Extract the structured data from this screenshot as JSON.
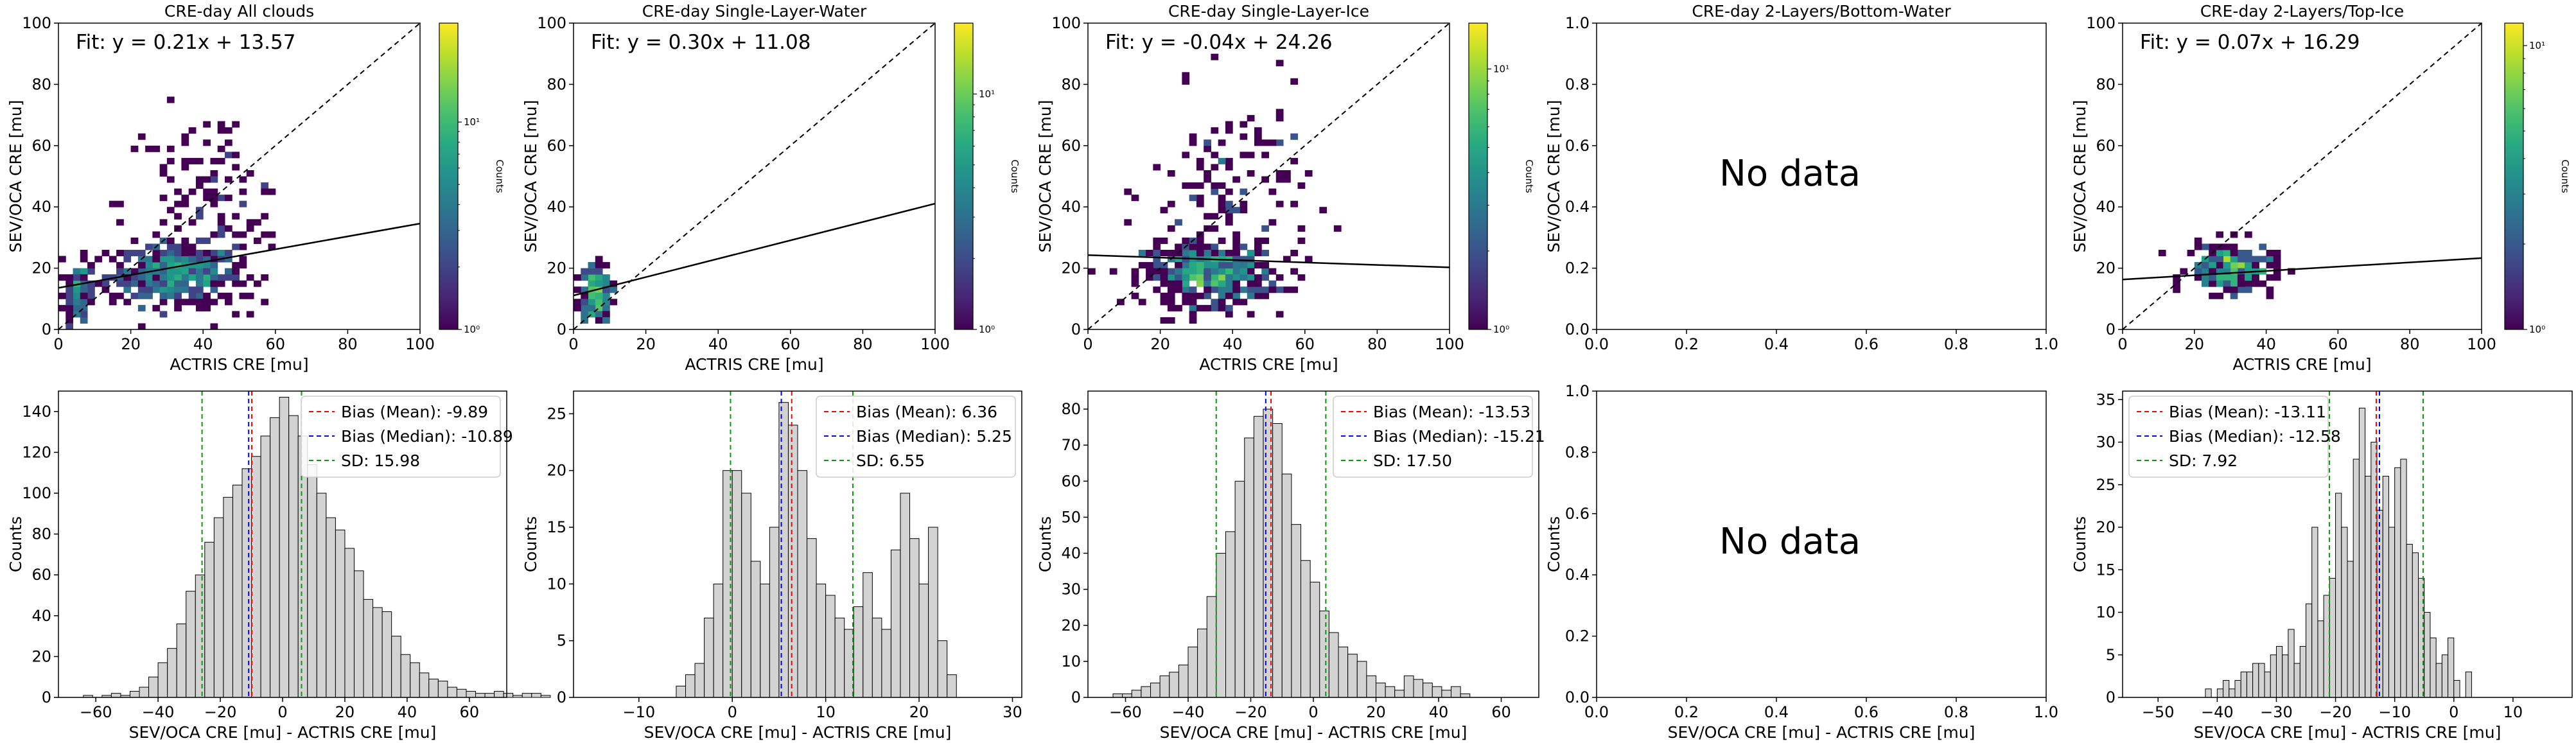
{
  "figure": {
    "no_data_text": "No data"
  },
  "chart_data": [
    {
      "type": "heatmap",
      "title": "CRE-day All clouds",
      "xlabel": "ACTRIS CRE [mu]",
      "ylabel": "SEV/OCA CRE [mu]",
      "xlim": [
        0,
        100
      ],
      "ylim": [
        0,
        100
      ],
      "xticks": [
        "0",
        "20",
        "40",
        "60",
        "80",
        "100"
      ],
      "yticks": [
        "0",
        "20",
        "40",
        "60",
        "80",
        "100"
      ],
      "fit_label": "Fit: y = 0.21x + 13.57",
      "fit": {
        "slope": 0.21,
        "intercept": 13.57
      },
      "reference_line": "1:1",
      "colorbar": {
        "label": "Counts",
        "scale": "log",
        "ticks": [
          "10⁰",
          "10¹"
        ],
        "range": [
          1,
          30
        ]
      },
      "density": {
        "clusters": [
          {
            "x": 32,
            "y": 18,
            "sx": 9,
            "sy": 5,
            "n": 420
          },
          {
            "x": 6,
            "y": 12,
            "sx": 2,
            "sy": 5,
            "n": 90
          },
          {
            "x": 42,
            "y": 40,
            "sx": 12,
            "sy": 16,
            "n": 120
          }
        ],
        "xmax": 60,
        "ymax": 90
      }
    },
    {
      "type": "heatmap",
      "title": "CRE-day Single-Layer-Water",
      "xlabel": "ACTRIS CRE [mu]",
      "ylabel": "SEV/OCA CRE [mu]",
      "xlim": [
        0,
        100
      ],
      "ylim": [
        0,
        100
      ],
      "xticks": [
        "0",
        "20",
        "40",
        "60",
        "80",
        "100"
      ],
      "yticks": [
        "0",
        "20",
        "40",
        "60",
        "80",
        "100"
      ],
      "fit_label": "Fit: y = 0.30x + 11.08",
      "fit": {
        "slope": 0.3,
        "intercept": 11.08
      },
      "reference_line": "1:1",
      "colorbar": {
        "label": "Counts",
        "scale": "log",
        "ticks": [
          "10⁰",
          "10¹"
        ],
        "range": [
          1,
          20
        ]
      },
      "density": {
        "clusters": [
          {
            "x": 6,
            "y": 12,
            "sx": 2,
            "sy": 5,
            "n": 160
          }
        ],
        "xmax": 14,
        "ymax": 24
      }
    },
    {
      "type": "heatmap",
      "title": "CRE-day Single-Layer-Ice",
      "xlabel": "ACTRIS CRE [mu]",
      "ylabel": "SEV/OCA CRE [mu]",
      "xlim": [
        0,
        100
      ],
      "ylim": [
        0,
        100
      ],
      "xticks": [
        "0",
        "20",
        "40",
        "60",
        "80",
        "100"
      ],
      "yticks": [
        "0",
        "20",
        "40",
        "60",
        "80",
        "100"
      ],
      "fit_label": "Fit: y = -0.04x + 24.26",
      "fit": {
        "slope": -0.04,
        "intercept": 24.26
      },
      "reference_line": "1:1",
      "colorbar": {
        "label": "Counts",
        "scale": "log",
        "ticks": [
          "10⁰",
          "10¹"
        ],
        "range": [
          1,
          15
        ]
      },
      "density": {
        "clusters": [
          {
            "x": 34,
            "y": 18,
            "sx": 9,
            "sy": 5,
            "n": 380
          },
          {
            "x": 40,
            "y": 45,
            "sx": 11,
            "sy": 16,
            "n": 120
          }
        ],
        "xmax": 78,
        "ymax": 92
      }
    },
    {
      "type": "heatmap",
      "title": "CRE-day 2-Layers/Bottom-Water",
      "xlabel": "",
      "ylabel": "SEV/OCA CRE [mu]",
      "xlim": [
        0,
        1
      ],
      "ylim": [
        0,
        1
      ],
      "xticks": [
        "0.0",
        "0.2",
        "0.4",
        "0.6",
        "0.8",
        "1.0"
      ],
      "yticks": [
        "0.0",
        "0.2",
        "0.4",
        "0.6",
        "0.8",
        "1.0"
      ],
      "empty": true
    },
    {
      "type": "heatmap",
      "title": "CRE-day 2-Layers/Top-Ice",
      "xlabel": "ACTRIS CRE [mu]",
      "ylabel": "SEV/OCA CRE [mu]",
      "xlim": [
        0,
        100
      ],
      "ylim": [
        0,
        100
      ],
      "xticks": [
        "0",
        "20",
        "40",
        "60",
        "80",
        "100"
      ],
      "yticks": [
        "0",
        "20",
        "40",
        "60",
        "80",
        "100"
      ],
      "fit_label": "Fit: y = 0.07x + 16.29",
      "fit": {
        "slope": 0.07,
        "intercept": 16.29
      },
      "reference_line": "1:1",
      "colorbar": {
        "label": "Counts",
        "scale": "log",
        "ticks": [
          "10⁰",
          "10¹"
        ],
        "range": [
          1,
          12
        ]
      },
      "density": {
        "clusters": [
          {
            "x": 30,
            "y": 20,
            "sx": 6,
            "sy": 4,
            "n": 200
          }
        ],
        "xmax": 52,
        "ymax": 32
      }
    },
    {
      "type": "bar",
      "subtype": "histogram",
      "xlabel": "SEV/OCA CRE [mu] - ACTRIS CRE [mu]",
      "ylabel": "Counts",
      "xlim": [
        -72,
        72
      ],
      "ylim": [
        0,
        150
      ],
      "xticks": [
        -60,
        -40,
        -20,
        0,
        20,
        40,
        60
      ],
      "yticks": [
        0,
        20,
        40,
        60,
        80,
        100,
        120,
        140
      ],
      "bin_start": -64,
      "bin_width": 3,
      "values": [
        1,
        0,
        1,
        2,
        1,
        3,
        5,
        10,
        17,
        24,
        36,
        52,
        60,
        76,
        88,
        98,
        104,
        112,
        118,
        128,
        137,
        147,
        138,
        128,
        114,
        100,
        88,
        82,
        73,
        62,
        48,
        44,
        42,
        30,
        21,
        17,
        12,
        9,
        8,
        5,
        4,
        3,
        2,
        2,
        3,
        2,
        1,
        2,
        2,
        1
      ],
      "lines": [
        {
          "label": "Bias (Mean): -9.89",
          "x": -9.89,
          "color": "#ff0000"
        },
        {
          "label": "Bias (Median): -10.89",
          "x": -10.89,
          "color": "#0000ff"
        },
        {
          "label": "SD: 15.98",
          "x": -25.87,
          "x2": 6.09,
          "color": "#00a000"
        }
      ],
      "legend_position": "top-right"
    },
    {
      "type": "bar",
      "subtype": "histogram",
      "xlabel": "SEV/OCA CRE [mu] - ACTRIS CRE [mu]",
      "ylabel": "Counts",
      "xlim": [
        -17,
        31
      ],
      "ylim": [
        0,
        27
      ],
      "xticks": [
        -10,
        0,
        10,
        20,
        30
      ],
      "yticks": [
        0,
        5,
        10,
        15,
        20,
        25
      ],
      "bin_start": -6,
      "bin_width": 1,
      "values": [
        1,
        2,
        3,
        7,
        10,
        20,
        20,
        18,
        12,
        10,
        15,
        26,
        24,
        20,
        14,
        10,
        9,
        7,
        6,
        8,
        11,
        7,
        6,
        13,
        18,
        14,
        10,
        15,
        5,
        2
      ],
      "lines": [
        {
          "label": "Bias (Mean): 6.36",
          "x": 6.36,
          "color": "#ff0000"
        },
        {
          "label": "Bias (Median): 5.25",
          "x": 5.25,
          "color": "#0000ff"
        },
        {
          "label": "SD: 6.55",
          "x": -0.19,
          "x2": 12.91,
          "color": "#00a000"
        }
      ],
      "legend_position": "top-right"
    },
    {
      "type": "bar",
      "subtype": "histogram",
      "xlabel": "SEV/OCA CRE [mu] - ACTRIS CRE [mu]",
      "ylabel": "Counts",
      "xlim": [
        -72,
        72
      ],
      "ylim": [
        0,
        85
      ],
      "xticks": [
        -60,
        -40,
        -20,
        0,
        20,
        40,
        60
      ],
      "yticks": [
        0,
        10,
        20,
        30,
        40,
        50,
        60,
        70,
        80
      ],
      "bin_start": -64,
      "bin_width": 3,
      "values": [
        1,
        1,
        2,
        3,
        4,
        6,
        7,
        9,
        14,
        19,
        28,
        40,
        46,
        60,
        72,
        78,
        80,
        76,
        62,
        48,
        38,
        32,
        24,
        18,
        14,
        12,
        10,
        6,
        4,
        3,
        2,
        6,
        5,
        4,
        3,
        2,
        3,
        1
      ],
      "lines": [
        {
          "label": "Bias (Mean): -13.53",
          "x": -13.53,
          "color": "#ff0000"
        },
        {
          "label": "Bias (Median): -15.21",
          "x": -15.21,
          "color": "#0000ff"
        },
        {
          "label": "SD: 17.50",
          "x": -31.03,
          "x2": 3.97,
          "color": "#00a000"
        }
      ],
      "legend_position": "top-right"
    },
    {
      "type": "bar",
      "subtype": "histogram",
      "xlabel": "SEV/OCA CRE [mu] - ACTRIS CRE [mu]",
      "ylabel": "Counts",
      "xlim": [
        0,
        1
      ],
      "ylim": [
        0,
        1
      ],
      "xticks": [
        "0.0",
        "0.2",
        "0.4",
        "0.6",
        "0.8",
        "1.0"
      ],
      "yticks": [
        "0.0",
        "0.2",
        "0.4",
        "0.6",
        "0.8",
        "1.0"
      ],
      "empty": true
    },
    {
      "type": "bar",
      "subtype": "histogram",
      "xlabel": "SEV/OCA CRE [mu] - ACTRIS CRE [mu]",
      "ylabel": "Counts",
      "xlim": [
        -56,
        20
      ],
      "ylim": [
        0,
        36
      ],
      "xticks": [
        -50,
        -40,
        -30,
        -20,
        -10,
        0,
        10
      ],
      "yticks": [
        0,
        5,
        10,
        15,
        20,
        25,
        30,
        35
      ],
      "bin_start": -42,
      "bin_width": 1,
      "values": [
        1,
        0,
        1,
        2,
        1,
        2,
        3,
        3,
        4,
        4,
        3,
        5,
        6,
        5,
        8,
        4,
        6,
        11,
        20,
        9,
        12,
        14,
        24,
        20,
        16,
        28,
        34,
        26,
        30,
        22,
        26,
        20,
        27,
        28,
        18,
        17,
        14,
        10,
        7,
        4,
        5,
        7,
        2,
        0,
        3
      ],
      "lines": [
        {
          "label": "Bias (Mean): -13.11",
          "x": -13.11,
          "color": "#ff0000"
        },
        {
          "label": "Bias (Median): -12.58",
          "x": -12.58,
          "color": "#0000ff"
        },
        {
          "label": "SD: 7.92",
          "x": -21.03,
          "x2": -5.19,
          "color": "#00a000"
        }
      ],
      "legend_position": "top-left"
    }
  ]
}
